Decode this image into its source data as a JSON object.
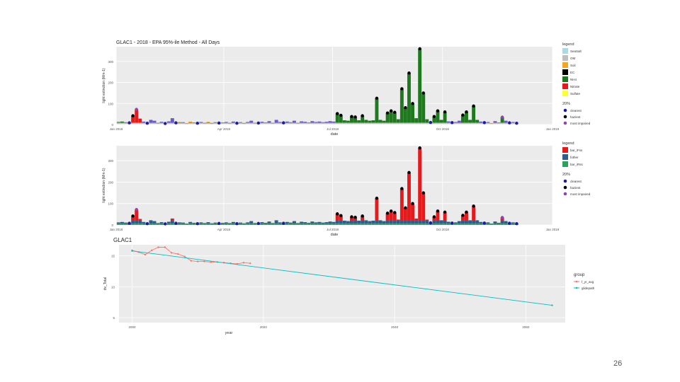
{
  "slide": {
    "page_number": "26"
  },
  "colors": {
    "panel_bg": "#ebebeb",
    "grid": "#ffffff",
    "SeaSalt": "#add8e6",
    "OM": "#bfbfbf",
    "Soil": "#f5a623",
    "EC": "#000000",
    "NH4": "#1f7a1f",
    "Nitrate": "#e41a1c",
    "Sulfate": "#ffff33",
    "f_Fss": "#e41a1c",
    "f_other": "#2e5e8e",
    "f_Rss": "#2ca25f",
    "clearest": "#1a1aa6",
    "haziest": "#000000",
    "most_impaired": "#8e44ad",
    "f_yr_avg": "#f8766d",
    "glidepath": "#00bfc4"
  },
  "chart_data": [
    {
      "type": "bar",
      "title": "GLAC1 - 2018  - EPA 95%-ile Method  - All Days",
      "xlabel": "date",
      "ylabel": "light extinction (Mm-1)",
      "x_ticks": [
        "Jan 2018",
        "Apr 2018",
        "Jul 2018",
        "Oct 2018",
        "Jan 2019"
      ],
      "x_range": [
        0,
        365
      ],
      "y_ticks": [
        "0",
        "100",
        "200",
        "300"
      ],
      "ylim": [
        0,
        370
      ],
      "grid": true,
      "legend_position": "right",
      "legend": {
        "title": "legend",
        "entries": [
          "SeaSalt",
          "OM",
          "Soil",
          "EC",
          "NH4",
          "Nitrate",
          "Sulfate"
        ]
      },
      "legend2": {
        "title": "20%",
        "entries": [
          "clearest",
          "haziest",
          "most impaired"
        ]
      },
      "samples": [
        {
          "day": 2,
          "total": 12,
          "main": "NH4",
          "flag": ""
        },
        {
          "day": 5,
          "total": 14,
          "main": "NH4",
          "flag": ""
        },
        {
          "day": 8,
          "total": 11,
          "main": "OM",
          "flag": ""
        },
        {
          "day": 11,
          "total": 8,
          "main": "OM",
          "flag": "clearest"
        },
        {
          "day": 14,
          "total": 42,
          "main": "Nitrate",
          "flag": "haziest"
        },
        {
          "day": 17,
          "total": 72,
          "main": "Nitrate",
          "flag": "most_impaired"
        },
        {
          "day": 20,
          "total": 28,
          "main": "Nitrate",
          "flag": ""
        },
        {
          "day": 23,
          "total": 14,
          "main": "OM",
          "flag": ""
        },
        {
          "day": 26,
          "total": 6,
          "main": "OM",
          "flag": "clearest"
        },
        {
          "day": 29,
          "total": 22,
          "main": "OM",
          "flag": ""
        },
        {
          "day": 32,
          "total": 18,
          "main": "OM",
          "flag": ""
        },
        {
          "day": 35,
          "total": 9,
          "main": "OM",
          "flag": ""
        },
        {
          "day": 38,
          "total": 13,
          "main": "OM",
          "flag": ""
        },
        {
          "day": 41,
          "total": 5,
          "main": "OM",
          "flag": "clearest"
        },
        {
          "day": 44,
          "total": 15,
          "main": "OM",
          "flag": ""
        },
        {
          "day": 47,
          "total": 30,
          "main": "OM",
          "flag": ""
        },
        {
          "day": 50,
          "total": 8,
          "main": "OM",
          "flag": "clearest"
        },
        {
          "day": 53,
          "total": 12,
          "main": "Soil",
          "flag": ""
        },
        {
          "day": 56,
          "total": 11,
          "main": "OM",
          "flag": ""
        },
        {
          "day": 59,
          "total": 7,
          "main": "OM",
          "flag": ""
        },
        {
          "day": 62,
          "total": 14,
          "main": "Soil",
          "flag": ""
        },
        {
          "day": 65,
          "total": 10,
          "main": "OM",
          "flag": ""
        },
        {
          "day": 68,
          "total": 6,
          "main": "OM",
          "flag": "clearest"
        },
        {
          "day": 71,
          "total": 12,
          "main": "OM",
          "flag": ""
        },
        {
          "day": 74,
          "total": 9,
          "main": "OM",
          "flag": ""
        },
        {
          "day": 77,
          "total": 13,
          "main": "Soil",
          "flag": ""
        },
        {
          "day": 80,
          "total": 8,
          "main": "OM",
          "flag": ""
        },
        {
          "day": 83,
          "total": 11,
          "main": "OM",
          "flag": ""
        },
        {
          "day": 86,
          "total": 7,
          "main": "OM",
          "flag": "clearest"
        },
        {
          "day": 89,
          "total": 10,
          "main": "OM",
          "flag": ""
        },
        {
          "day": 92,
          "total": 12,
          "main": "OM",
          "flag": ""
        },
        {
          "day": 95,
          "total": 9,
          "main": "OM",
          "flag": ""
        },
        {
          "day": 98,
          "total": 14,
          "main": "OM",
          "flag": ""
        },
        {
          "day": 101,
          "total": 6,
          "main": "OM",
          "flag": "clearest"
        },
        {
          "day": 104,
          "total": 11,
          "main": "OM",
          "flag": ""
        },
        {
          "day": 107,
          "total": 8,
          "main": "OM",
          "flag": ""
        },
        {
          "day": 110,
          "total": 12,
          "main": "OM",
          "flag": ""
        },
        {
          "day": 113,
          "total": 18,
          "main": "OM",
          "flag": ""
        },
        {
          "day": 116,
          "total": 9,
          "main": "OM",
          "flag": ""
        },
        {
          "day": 119,
          "total": 7,
          "main": "OM",
          "flag": "clearest"
        },
        {
          "day": 122,
          "total": 13,
          "main": "OM",
          "flag": ""
        },
        {
          "day": 125,
          "total": 10,
          "main": "OM",
          "flag": ""
        },
        {
          "day": 128,
          "total": 16,
          "main": "OM",
          "flag": ""
        },
        {
          "day": 131,
          "total": 9,
          "main": "OM",
          "flag": ""
        },
        {
          "day": 134,
          "total": 22,
          "main": "OM",
          "flag": ""
        },
        {
          "day": 137,
          "total": 12,
          "main": "OM",
          "flag": ""
        },
        {
          "day": 140,
          "total": 8,
          "main": "OM",
          "flag": "clearest"
        },
        {
          "day": 143,
          "total": 14,
          "main": "OM",
          "flag": ""
        },
        {
          "day": 146,
          "total": 11,
          "main": "OM",
          "flag": ""
        },
        {
          "day": 149,
          "total": 18,
          "main": "OM",
          "flag": ""
        },
        {
          "day": 152,
          "total": 9,
          "main": "OM",
          "flag": ""
        },
        {
          "day": 155,
          "total": 15,
          "main": "OM",
          "flag": ""
        },
        {
          "day": 158,
          "total": 13,
          "main": "OM",
          "flag": ""
        },
        {
          "day": 161,
          "total": 10,
          "main": "OM",
          "flag": ""
        },
        {
          "day": 164,
          "total": 16,
          "main": "OM",
          "flag": ""
        },
        {
          "day": 167,
          "total": 12,
          "main": "OM",
          "flag": ""
        },
        {
          "day": 170,
          "total": 14,
          "main": "OM",
          "flag": ""
        },
        {
          "day": 173,
          "total": 11,
          "main": "OM",
          "flag": ""
        },
        {
          "day": 176,
          "total": 13,
          "main": "OM",
          "flag": ""
        },
        {
          "day": 179,
          "total": 16,
          "main": "OM",
          "flag": ""
        },
        {
          "day": 182,
          "total": 14,
          "main": "OM",
          "flag": ""
        },
        {
          "day": 185,
          "total": 52,
          "main": "NH4",
          "flag": "haziest"
        },
        {
          "day": 188,
          "total": 44,
          "main": "NH4",
          "flag": "haziest"
        },
        {
          "day": 191,
          "total": 20,
          "main": "NH4",
          "flag": ""
        },
        {
          "day": 194,
          "total": 18,
          "main": "NH4",
          "flag": ""
        },
        {
          "day": 197,
          "total": 38,
          "main": "NH4",
          "flag": "haziest"
        },
        {
          "day": 200,
          "total": 36,
          "main": "NH4",
          "flag": "haziest"
        },
        {
          "day": 203,
          "total": 20,
          "main": "NH4",
          "flag": ""
        },
        {
          "day": 206,
          "total": 42,
          "main": "NH4",
          "flag": "haziest"
        },
        {
          "day": 209,
          "total": 22,
          "main": "NH4",
          "flag": ""
        },
        {
          "day": 212,
          "total": 18,
          "main": "NH4",
          "flag": ""
        },
        {
          "day": 215,
          "total": 20,
          "main": "NH4",
          "flag": ""
        },
        {
          "day": 218,
          "total": 125,
          "main": "NH4",
          "flag": "haziest"
        },
        {
          "day": 221,
          "total": 22,
          "main": "NH4",
          "flag": ""
        },
        {
          "day": 224,
          "total": 18,
          "main": "NH4",
          "flag": ""
        },
        {
          "day": 227,
          "total": 55,
          "main": "NH4",
          "flag": "haziest"
        },
        {
          "day": 230,
          "total": 65,
          "main": "NH4",
          "flag": "haziest"
        },
        {
          "day": 233,
          "total": 58,
          "main": "NH4",
          "flag": "haziest"
        },
        {
          "day": 236,
          "total": 25,
          "main": "NH4",
          "flag": ""
        },
        {
          "day": 239,
          "total": 170,
          "main": "NH4",
          "flag": "haziest"
        },
        {
          "day": 242,
          "total": 80,
          "main": "NH4",
          "flag": "haziest"
        },
        {
          "day": 245,
          "total": 245,
          "main": "NH4",
          "flag": "haziest"
        },
        {
          "day": 248,
          "total": 100,
          "main": "NH4",
          "flag": "haziest"
        },
        {
          "day": 251,
          "total": 30,
          "main": "NH4",
          "flag": ""
        },
        {
          "day": 254,
          "total": 360,
          "main": "NH4",
          "flag": "haziest"
        },
        {
          "day": 257,
          "total": 150,
          "main": "NH4",
          "flag": "haziest"
        },
        {
          "day": 260,
          "total": 25,
          "main": "NH4",
          "flag": ""
        },
        {
          "day": 263,
          "total": 10,
          "main": "OM",
          "flag": "clearest"
        },
        {
          "day": 266,
          "total": 38,
          "main": "NH4",
          "flag": "haziest"
        },
        {
          "day": 269,
          "total": 65,
          "main": "NH4",
          "flag": "haziest"
        },
        {
          "day": 272,
          "total": 22,
          "main": "NH4",
          "flag": ""
        },
        {
          "day": 275,
          "total": 60,
          "main": "NH4",
          "flag": "haziest"
        },
        {
          "day": 278,
          "total": 15,
          "main": "OM",
          "flag": ""
        },
        {
          "day": 281,
          "total": 9,
          "main": "OM",
          "flag": "clearest"
        },
        {
          "day": 284,
          "total": 12,
          "main": "OM",
          "flag": ""
        },
        {
          "day": 287,
          "total": 18,
          "main": "OM",
          "flag": ""
        },
        {
          "day": 290,
          "total": 45,
          "main": "NH4",
          "flag": "haziest"
        },
        {
          "day": 293,
          "total": 60,
          "main": "NH4",
          "flag": "haziest"
        },
        {
          "day": 296,
          "total": 22,
          "main": "NH4",
          "flag": ""
        },
        {
          "day": 299,
          "total": 88,
          "main": "NH4",
          "flag": "haziest"
        },
        {
          "day": 302,
          "total": 22,
          "main": "NH4",
          "flag": ""
        },
        {
          "day": 305,
          "total": 14,
          "main": "OM",
          "flag": ""
        },
        {
          "day": 308,
          "total": 9,
          "main": "OM",
          "flag": "clearest"
        },
        {
          "day": 311,
          "total": 12,
          "main": "OM",
          "flag": ""
        },
        {
          "day": 314,
          "total": 7,
          "main": "OM",
          "flag": ""
        },
        {
          "day": 317,
          "total": 16,
          "main": "OM",
          "flag": ""
        },
        {
          "day": 320,
          "total": 10,
          "main": "OM",
          "flag": ""
        },
        {
          "day": 323,
          "total": 35,
          "main": "NH4",
          "flag": "most_impaired"
        },
        {
          "day": 326,
          "total": 18,
          "main": "OM",
          "flag": ""
        },
        {
          "day": 329,
          "total": 8,
          "main": "OM",
          "flag": "clearest"
        },
        {
          "day": 332,
          "total": 12,
          "main": "OM",
          "flag": ""
        },
        {
          "day": 335,
          "total": 6,
          "main": "OM",
          "flag": "clearest"
        }
      ]
    },
    {
      "type": "bar",
      "xlabel": "date",
      "ylabel": "light extinction (Mm-1)",
      "x_ticks": [
        "Jan 2018",
        "Apr 2018",
        "Jul 2018",
        "Oct 2018",
        "Jan 2019"
      ],
      "x_range": [
        0,
        365
      ],
      "y_ticks": [
        "0",
        "100",
        "200",
        "300"
      ],
      "ylim": [
        0,
        370
      ],
      "grid": true,
      "legend_position": "right",
      "legend": {
        "title": "legend",
        "entries": [
          "bar_iFss",
          "fother",
          "bar_iRss"
        ]
      },
      "legend2": {
        "title": "20%",
        "entries": [
          "clearest",
          "haziest",
          "most impaired"
        ]
      },
      "note": "same samples as chart 1, decomposed into Fss/other/Rss"
    },
    {
      "type": "line",
      "title": "GLAC1",
      "xlabel": "year",
      "ylabel": "dv_Total",
      "x_ticks": [
        "2000",
        "2020",
        "2040",
        "2060"
      ],
      "xlim": [
        1998,
        2066
      ],
      "y_ticks": [
        "5",
        "10",
        "15"
      ],
      "ylim": [
        4.2,
        16.8
      ],
      "grid": true,
      "legend_position": "right",
      "legend": {
        "title": "group",
        "entries": [
          "f_yr_avg",
          "glidepath"
        ]
      },
      "series": [
        {
          "name": "f_yr_avg",
          "x": [
            2000,
            2001,
            2002,
            2003,
            2004,
            2005,
            2006,
            2007,
            2008,
            2009,
            2010,
            2011,
            2012,
            2013,
            2014,
            2015,
            2016,
            2017,
            2018
          ],
          "y": [
            15.9,
            15.6,
            15.2,
            15.9,
            16.4,
            16.4,
            15.5,
            15.3,
            14.9,
            14.2,
            14.1,
            14.1,
            14.0,
            14.0,
            13.9,
            13.8,
            13.7,
            13.9,
            13.8
          ]
        },
        {
          "name": "glidepath",
          "x": [
            2000,
            2064
          ],
          "y": [
            15.8,
            7.0
          ]
        }
      ]
    }
  ]
}
